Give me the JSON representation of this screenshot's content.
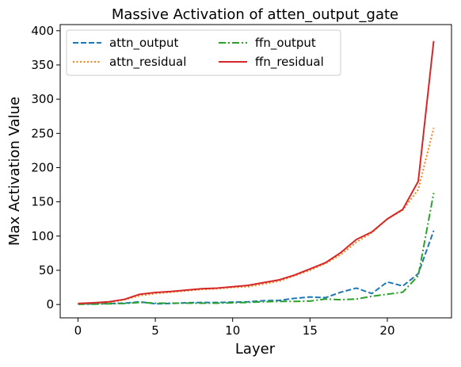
{
  "chart_data": {
    "type": "line",
    "title": "Massive Activation of atten_output_gate",
    "xlabel": "Layer",
    "ylabel": "Max Activation Value",
    "xlim": [
      -1.15,
      24.15
    ],
    "ylim": [
      -19.5,
      409
    ],
    "xticks": [
      0,
      5,
      10,
      15,
      20
    ],
    "yticks": [
      0,
      50,
      100,
      150,
      200,
      250,
      300,
      350,
      400
    ],
    "grid": false,
    "legend_position": "top-left",
    "legend_columns": 2,
    "x": [
      0,
      1,
      2,
      3,
      4,
      5,
      6,
      7,
      8,
      9,
      10,
      11,
      12,
      13,
      14,
      15,
      16,
      17,
      18,
      19,
      20,
      21,
      22,
      23
    ],
    "series": [
      {
        "name": "attn_output",
        "color": "#1f77b4",
        "style": "dashed",
        "values": [
          0.5,
          1,
          1.5,
          2,
          4,
          1,
          1.5,
          2.5,
          3,
          3,
          3.5,
          4,
          5.5,
          6,
          9,
          11,
          10,
          18,
          24,
          16,
          33,
          27,
          45,
          108
        ]
      },
      {
        "name": "attn_residual",
        "color": "#ff7f0e",
        "style": "dotted",
        "values": [
          1,
          2,
          3,
          7,
          13,
          16,
          18,
          20,
          22,
          23,
          25,
          26,
          30,
          34,
          42,
          50,
          60,
          73,
          91,
          105,
          125,
          138,
          168,
          258
        ]
      },
      {
        "name": "ffn_output",
        "color": "#2ca02c",
        "style": "dashdot",
        "values": [
          0.5,
          0.5,
          1,
          1.5,
          3,
          2,
          2,
          2,
          2,
          2,
          2.5,
          3,
          4,
          4.5,
          4.5,
          5,
          8,
          7,
          8,
          12,
          15,
          18,
          42,
          163
        ]
      },
      {
        "name": "ffn_residual",
        "color": "#d62728",
        "style": "solid",
        "values": [
          1.5,
          2.5,
          4,
          7.5,
          15,
          17.5,
          19,
          21,
          23,
          24,
          26,
          28,
          32,
          36,
          43,
          52,
          61,
          76,
          95,
          106,
          125,
          139,
          180,
          385
        ]
      }
    ]
  }
}
